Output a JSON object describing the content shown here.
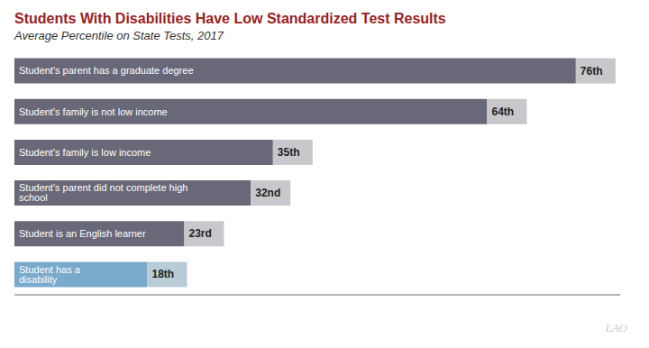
{
  "chart_data": {
    "type": "bar",
    "orientation": "horizontal",
    "title": "Students With Disabilities Have Low Standardized Test Results",
    "subtitle": "Average Percentile on State Tests, 2017",
    "categories": [
      "Student's parent has a graduate degree",
      "Student's family is not low income",
      "Student's family is low income",
      "Student's parent did not complete high school",
      "Student is an English learner",
      "Student has a disability"
    ],
    "values": [
      76,
      64,
      35,
      32,
      23,
      18
    ],
    "value_labels": [
      "76th",
      "64th",
      "35th",
      "32nd",
      "23rd",
      "18th"
    ],
    "colors": [
      "#686878",
      "#686878",
      "#686878",
      "#686878",
      "#686878",
      "#7aaacb"
    ],
    "xlim": [
      0,
      82
    ],
    "tick_labels": false,
    "grid": false,
    "data_labels": true,
    "annotations": [
      "LAO"
    ]
  }
}
